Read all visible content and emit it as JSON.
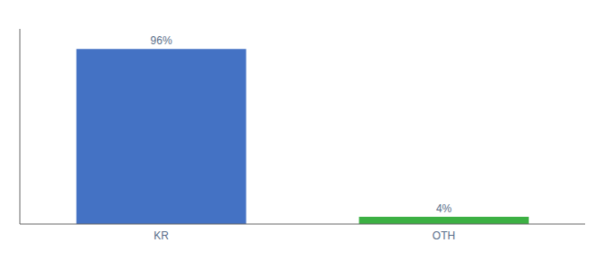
{
  "chart_data": {
    "type": "bar",
    "categories": [
      "KR",
      "OTH"
    ],
    "values": [
      96,
      4
    ],
    "colors": [
      "#4472c4",
      "#3cb043"
    ],
    "data_labels": true,
    "value_labels": [
      "96%",
      "4%"
    ],
    "ylim": [
      0,
      107
    ],
    "tick_labels": "x"
  }
}
